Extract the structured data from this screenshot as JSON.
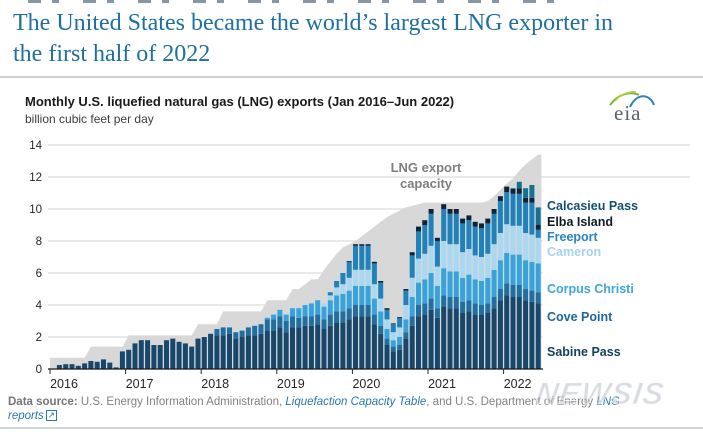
{
  "headline": "The United States became the world’s largest LNG exporter in the first half of 2022",
  "logo": {
    "text": "eia"
  },
  "chart": {
    "title": "Monthly U.S. liquefied natural gas (LNG) exports (Jan 2016–Jun 2022)",
    "subtitle": "billion cubic feet per day"
  },
  "chart_data": {
    "type": "bar",
    "stacked": true,
    "title": "Monthly U.S. liquefied natural gas (LNG) exports (Jan 2016–Jun 2022)",
    "ylabel": "billion cubic feet per day",
    "ylim": [
      0,
      14
    ],
    "y_ticks": [
      0,
      2,
      4,
      6,
      8,
      10,
      12,
      14
    ],
    "x_years": [
      "2016",
      "2017",
      "2018",
      "2019",
      "2020",
      "2021",
      "2022"
    ],
    "months_span": "Jan 2016 - Jun 2022",
    "grid": true,
    "legend_position": "right",
    "capacity": {
      "name": "LNG export capacity",
      "label_lines": [
        "LNG export",
        "capacity"
      ],
      "color": "#d8d8d8",
      "values": [
        0.7,
        0.7,
        0.7,
        0.7,
        0.7,
        0.7,
        1.4,
        1.4,
        1.4,
        1.4,
        1.4,
        1.4,
        2.1,
        2.1,
        2.1,
        2.1,
        2.1,
        2.1,
        2.1,
        2.1,
        2.1,
        2.1,
        2.1,
        2.8,
        2.8,
        2.8,
        2.8,
        3.6,
        3.6,
        3.6,
        3.6,
        3.6,
        3.6,
        3.6,
        4.3,
        4.3,
        4.3,
        4.3,
        5.0,
        5.0,
        5.3,
        5.6,
        5.6,
        6.2,
        6.7,
        7.2,
        7.6,
        7.8,
        8.0,
        8.3,
        8.6,
        8.9,
        9.2,
        9.5,
        9.7,
        9.9,
        10.1,
        10.2,
        10.3,
        10.4,
        10.4,
        10.4,
        10.4,
        10.4,
        10.4,
        10.4,
        10.4,
        10.4,
        10.4,
        10.5,
        10.8,
        11.2,
        11.6,
        11.9,
        12.4,
        12.8,
        13.1,
        13.4
      ]
    },
    "series": [
      {
        "name": "Sabine Pass",
        "color": "#17476a",
        "label_color": "#133f5e",
        "values": [
          0,
          0.25,
          0.3,
          0.3,
          0.2,
          0.35,
          0.5,
          0.45,
          0.6,
          0.4,
          0.1,
          1.1,
          1.2,
          1.6,
          1.8,
          1.8,
          1.5,
          1.5,
          1.8,
          1.9,
          1.7,
          1.6,
          1.4,
          1.9,
          2.0,
          2.2,
          2.1,
          2.1,
          2.2,
          1.9,
          2.0,
          2.1,
          2.1,
          2.2,
          2.4,
          2.4,
          2.6,
          2.3,
          2.6,
          2.6,
          2.7,
          2.7,
          2.8,
          2.5,
          2.7,
          2.9,
          2.9,
          3.1,
          3.3,
          3.3,
          3.3,
          2.8,
          2.2,
          1.5,
          1.1,
          1.2,
          1.9,
          2.7,
          3.3,
          3.4,
          3.7,
          3.2,
          3.9,
          3.8,
          3.8,
          3.5,
          3.6,
          3.4,
          3.4,
          3.5,
          3.8,
          4.3,
          4.6,
          4.5,
          4.5,
          4.3,
          4.2,
          4.1
        ]
      },
      {
        "name": "Cove Point",
        "color": "#1f6fa0",
        "label_color": "#1f669b",
        "values": [
          0,
          0,
          0,
          0,
          0,
          0,
          0,
          0,
          0,
          0,
          0,
          0,
          0,
          0,
          0,
          0,
          0,
          0,
          0,
          0,
          0,
          0,
          0,
          0,
          0,
          0,
          0.4,
          0.5,
          0.4,
          0.4,
          0.4,
          0.5,
          0.6,
          0.6,
          0.7,
          0.7,
          0.7,
          0.7,
          0.7,
          0.6,
          0.6,
          0.6,
          0.6,
          0.6,
          0.7,
          0.7,
          0.7,
          0.7,
          0.7,
          0.7,
          0.7,
          0.6,
          0.5,
          0.4,
          0.3,
          0.3,
          0.4,
          0.6,
          0.7,
          0.7,
          0.7,
          0.6,
          0.7,
          0.7,
          0.7,
          0.7,
          0.7,
          0.7,
          0.6,
          0.6,
          0.7,
          0.7,
          0.75,
          0.75,
          0.75,
          0.7,
          0.7,
          0.7
        ]
      },
      {
        "name": "Corpus Christi",
        "color": "#35a4dc",
        "label_color": "#3fa5da",
        "values": [
          0,
          0,
          0,
          0,
          0,
          0,
          0,
          0,
          0,
          0,
          0,
          0,
          0,
          0,
          0,
          0,
          0,
          0,
          0,
          0,
          0,
          0,
          0,
          0,
          0,
          0,
          0,
          0,
          0,
          0,
          0,
          0,
          0,
          0,
          0.1,
          0.3,
          0.4,
          0.4,
          0.5,
          0.6,
          0.7,
          0.8,
          0.9,
          0.8,
          0.9,
          1.0,
          1.1,
          1.1,
          1.2,
          1.2,
          1.2,
          1.0,
          0.9,
          0.6,
          0.4,
          0.5,
          0.8,
          1.2,
          1.4,
          1.5,
          1.6,
          1.4,
          1.7,
          1.6,
          1.6,
          1.5,
          1.6,
          1.5,
          1.5,
          1.6,
          1.7,
          1.8,
          1.9,
          1.9,
          1.9,
          1.8,
          1.8,
          1.8
        ]
      },
      {
        "name": "Cameron",
        "color": "#a9d9f2",
        "label_color": "#a5d3ec",
        "values": [
          0,
          0,
          0,
          0,
          0,
          0,
          0,
          0,
          0,
          0,
          0,
          0,
          0,
          0,
          0,
          0,
          0,
          0,
          0,
          0,
          0,
          0,
          0,
          0,
          0,
          0,
          0,
          0,
          0,
          0,
          0,
          0,
          0,
          0,
          0,
          0,
          0,
          0,
          0,
          0,
          0,
          0,
          0,
          0.2,
          0.3,
          0.5,
          0.6,
          0.8,
          1.0,
          1.0,
          1.0,
          0.9,
          0.8,
          0.6,
          0.5,
          0.6,
          0.9,
          1.2,
          1.5,
          1.6,
          1.7,
          1.2,
          1.7,
          1.7,
          1.7,
          1.6,
          1.6,
          1.5,
          1.5,
          1.5,
          1.6,
          1.7,
          1.8,
          1.8,
          1.8,
          1.7,
          1.7,
          1.6
        ]
      },
      {
        "name": "Freeport",
        "color": "#1f82ba",
        "label_color": "#2a85c0",
        "values": [
          0,
          0,
          0,
          0,
          0,
          0,
          0,
          0,
          0,
          0,
          0,
          0,
          0,
          0,
          0,
          0,
          0,
          0,
          0,
          0,
          0,
          0,
          0,
          0,
          0,
          0,
          0,
          0,
          0,
          0,
          0,
          0,
          0,
          0,
          0,
          0,
          0,
          0,
          0,
          0,
          0,
          0,
          0,
          0,
          0.2,
          0.4,
          0.7,
          1.0,
          1.5,
          1.5,
          1.5,
          1.3,
          1.0,
          0.6,
          0.5,
          0.6,
          0.9,
          1.4,
          1.7,
          1.8,
          2.0,
          1.6,
          2.0,
          1.9,
          1.9,
          1.8,
          1.8,
          1.8,
          1.8,
          1.9,
          1.9,
          2.0,
          2.0,
          2.0,
          2.0,
          1.9,
          2.0,
          0.5
        ]
      },
      {
        "name": "Elba Island",
        "color": "#0d2438",
        "label_color": "#101b24",
        "values": [
          0,
          0,
          0,
          0,
          0,
          0,
          0,
          0,
          0,
          0,
          0,
          0,
          0,
          0,
          0,
          0,
          0,
          0,
          0,
          0,
          0,
          0,
          0,
          0,
          0,
          0,
          0,
          0,
          0,
          0,
          0,
          0,
          0,
          0,
          0,
          0,
          0,
          0,
          0,
          0,
          0,
          0,
          0,
          0,
          0,
          0,
          0,
          0.05,
          0.1,
          0.1,
          0.1,
          0.1,
          0.1,
          0.1,
          0.05,
          0.05,
          0.1,
          0.2,
          0.3,
          0.3,
          0.3,
          0.2,
          0.3,
          0.3,
          0.3,
          0.3,
          0.3,
          0.3,
          0.3,
          0.3,
          0.3,
          0.3,
          0.35,
          0.3,
          0.35,
          0.3,
          0.3,
          0.3
        ]
      },
      {
        "name": "Calcasieu Pass",
        "color": "#166e90",
        "label_color": "#13506f",
        "values": [
          0,
          0,
          0,
          0,
          0,
          0,
          0,
          0,
          0,
          0,
          0,
          0,
          0,
          0,
          0,
          0,
          0,
          0,
          0,
          0,
          0,
          0,
          0,
          0,
          0,
          0,
          0,
          0,
          0,
          0,
          0,
          0,
          0,
          0,
          0,
          0,
          0,
          0,
          0,
          0,
          0,
          0,
          0,
          0,
          0,
          0,
          0,
          0,
          0,
          0,
          0,
          0,
          0,
          0,
          0,
          0,
          0,
          0,
          0,
          0,
          0,
          0,
          0,
          0,
          0,
          0,
          0,
          0,
          0,
          0,
          0,
          0,
          0,
          0.05,
          0.4,
          0.6,
          0.8,
          1.1
        ]
      }
    ]
  },
  "footer": {
    "prefix": "Data source:",
    "text1": " U.S. Energy Information Administration, ",
    "link1": "Liquefaction Capacity Table",
    "text2": ", and U.S. Department of Energy ",
    "link2": "LNG reports",
    "external_icon": "↗"
  },
  "watermark": "NEWSIS"
}
